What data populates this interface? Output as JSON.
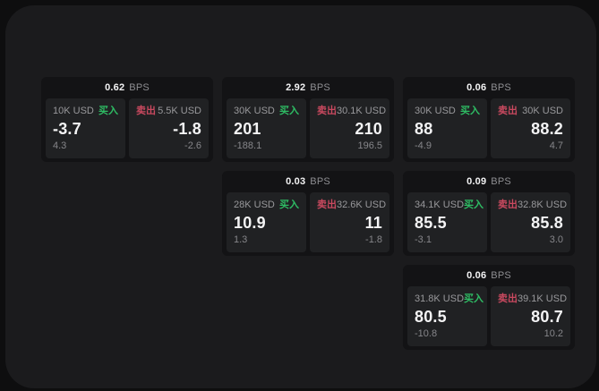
{
  "labels": {
    "buy": "买入",
    "sell": "卖出",
    "bps_unit": "BPS"
  },
  "colors": {
    "buy": "#2ebd64",
    "sell": "#c9495f",
    "panel_bg": "#1b1b1d",
    "card_bg": "#131315",
    "subpanel_bg": "#202123",
    "outer_bg": "#0e0e0f"
  },
  "cards": [
    {
      "bps": "0.62",
      "col": 1,
      "row": 1,
      "buy": {
        "amount": "10K USD",
        "value": "-3.7",
        "delta": "4.3"
      },
      "sell": {
        "amount": "5.5K USD",
        "value": "-1.8",
        "delta": "-2.6"
      }
    },
    {
      "bps": "2.92",
      "col": 2,
      "row": 1,
      "buy": {
        "amount": "30K USD",
        "value": "201",
        "delta": "-188.1"
      },
      "sell": {
        "amount": "30.1K USD",
        "value": "210",
        "delta": "196.5"
      }
    },
    {
      "bps": "0.06",
      "col": 3,
      "row": 1,
      "buy": {
        "amount": "30K USD",
        "value": "88",
        "delta": "-4.9"
      },
      "sell": {
        "amount": "30K USD",
        "value": "88.2",
        "delta": "4.7"
      }
    },
    {
      "bps": "0.03",
      "col": 2,
      "row": 2,
      "buy": {
        "amount": "28K USD",
        "value": "10.9",
        "delta": "1.3"
      },
      "sell": {
        "amount": "32.6K USD",
        "value": "11",
        "delta": "-1.8"
      }
    },
    {
      "bps": "0.09",
      "col": 3,
      "row": 2,
      "buy": {
        "amount": "34.1K USD",
        "value": "85.5",
        "delta": "-3.1"
      },
      "sell": {
        "amount": "32.8K USD",
        "value": "85.8",
        "delta": "3.0"
      }
    },
    {
      "bps": "0.06",
      "col": 3,
      "row": 3,
      "buy": {
        "amount": "31.8K USD",
        "value": "80.5",
        "delta": "-10.8"
      },
      "sell": {
        "amount": "39.1K USD",
        "value": "80.7",
        "delta": "10.2"
      }
    }
  ]
}
